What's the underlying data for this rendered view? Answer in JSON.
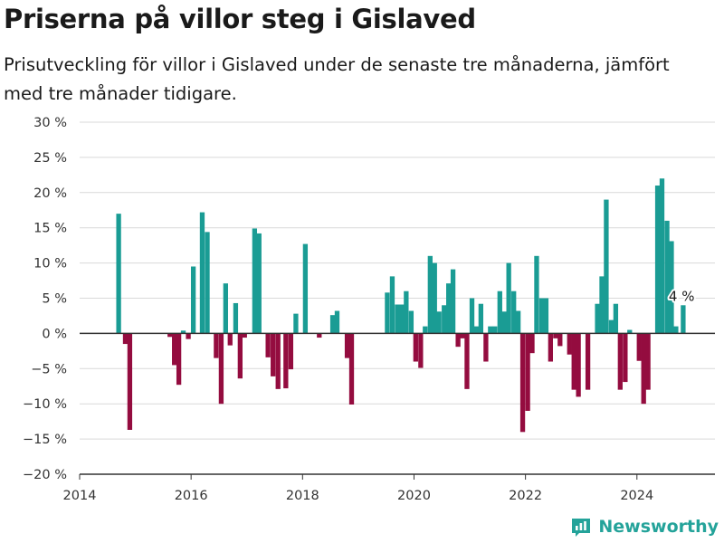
{
  "header": {
    "title": "Priserna på villor steg i Gislaved",
    "subtitle": "Prisutveckling för villor i Gislaved under de senaste tre månaderna, jämfört med tre månader tidigare."
  },
  "brand": {
    "name": "Newsworthy",
    "icon": "newsworthy-logo-icon"
  },
  "colors": {
    "positive": "#1a9c94",
    "negative": "#940c3f",
    "grid": "#d9d9d9",
    "axis": "#333333"
  },
  "chart_data": {
    "type": "bar",
    "title": "Priserna på villor steg i Gislaved",
    "subtitle": "Prisutveckling för villor i Gislaved under de senaste tre månaderna, jämfört med tre månader tidigare.",
    "xlabel": "",
    "ylabel": "",
    "xlim": [
      2014.0,
      2025.4
    ],
    "ylim": [
      -20,
      30
    ],
    "yticks": [
      -20,
      -15,
      -10,
      -5,
      0,
      5,
      10,
      15,
      20,
      25,
      30
    ],
    "ytick_labels": [
      "−20 %",
      "−15 %",
      "−10 %",
      "−5 %",
      "0 %",
      "5 %",
      "10 %",
      "15 %",
      "20 %",
      "25 %",
      "30 %"
    ],
    "xticks": [
      2014,
      2016,
      2018,
      2020,
      2022,
      2024
    ],
    "xtick_labels": [
      "2014",
      "2016",
      "2018",
      "2020",
      "2022",
      "2024"
    ],
    "grid": true,
    "annotation": {
      "text": "4 %",
      "x": 2024.83,
      "y": 4
    },
    "series": [
      {
        "x": [
          2014.7,
          2014.82,
          2014.9,
          2015.62,
          2015.7,
          2015.78,
          2015.86,
          2015.95,
          2016.04,
          2016.2,
          2016.29,
          2016.45,
          2016.54,
          2016.62,
          2016.7,
          2016.8,
          2016.88,
          2016.96,
          2017.14,
          2017.22,
          2017.38,
          2017.47,
          2017.56,
          2017.7,
          2017.79,
          2017.88,
          2018.05,
          2018.3,
          2018.54,
          2018.62,
          2018.8,
          2018.88,
          2019.52,
          2019.61,
          2019.7,
          2019.78,
          2019.86,
          2019.95,
          2020.03,
          2020.12,
          2020.2,
          2020.29,
          2020.37,
          2020.45,
          2020.54,
          2020.62,
          2020.7,
          2020.79,
          2020.87,
          2020.95,
          2021.04,
          2021.12,
          2021.2,
          2021.29,
          2021.37,
          2021.45,
          2021.54,
          2021.62,
          2021.7,
          2021.79,
          2021.87,
          2021.95,
          2022.04,
          2022.12,
          2022.2,
          2022.29,
          2022.37,
          2022.45,
          2022.54,
          2022.62,
          2022.79,
          2022.87,
          2022.95,
          2023.12,
          2023.29,
          2023.37,
          2023.45,
          2023.54,
          2023.62,
          2023.7,
          2023.79,
          2023.87,
          2024.04,
          2024.12,
          2024.2,
          2024.37,
          2024.45,
          2024.54,
          2024.62,
          2024.7,
          2024.83
        ],
        "values": [
          17,
          -1.5,
          -13.7,
          -0.5,
          -4.5,
          -7.3,
          0.4,
          -0.8,
          9.5,
          17.2,
          14.4,
          -3.5,
          -10,
          7.1,
          -1.7,
          4.3,
          -6.4,
          -0.6,
          14.9,
          14.2,
          -3.4,
          -6.1,
          -7.9,
          -7.8,
          -5.1,
          2.8,
          12.7,
          -0.6,
          2.6,
          3.2,
          -3.5,
          -10.1,
          5.8,
          8.1,
          4.1,
          4.1,
          6.0,
          3.2,
          -4.0,
          -4.9,
          1.0,
          11.0,
          10.0,
          3.1,
          4.0,
          7.1,
          9.1,
          -1.9,
          -0.7,
          -7.9,
          5.0,
          1.0,
          4.2,
          -4.0,
          1.0,
          1.0,
          6.0,
          3.1,
          10.0,
          6.0,
          3.2,
          -14.0,
          -11.0,
          -2.8,
          11.0,
          5.0,
          5.0,
          -4.0,
          -0.7,
          -1.8,
          -3.0,
          -8.0,
          -9.0,
          -8.0,
          4.2,
          8.1,
          19.0,
          1.9,
          4.2,
          -8.0,
          -6.9,
          0.5,
          -3.9,
          -10.0,
          -8.0,
          21.0,
          22.0,
          16.0,
          13.1,
          1.0,
          4.0
        ]
      }
    ]
  }
}
